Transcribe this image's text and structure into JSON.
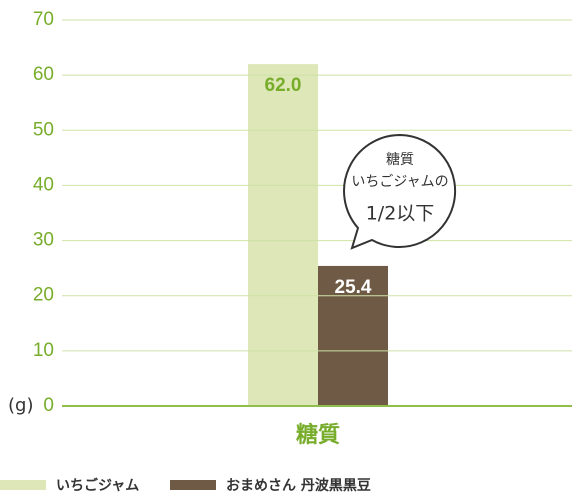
{
  "chart_data": {
    "type": "bar",
    "categories": [
      "糖質"
    ],
    "y_unit": "(g)",
    "series": [
      {
        "name": "いちごジャム",
        "color": "#dde7b8",
        "label_color": "#78ad2c",
        "values": [
          62.0
        ],
        "value_labels": [
          "62.0"
        ]
      },
      {
        "name": "おまめさん 丹波黒黒豆",
        "color": "#6e5a45",
        "label_color": "#ffffff",
        "values": [
          25.4
        ],
        "value_labels": [
          "25.4"
        ]
      }
    ],
    "ylim": [
      0,
      70
    ],
    "yticks": [
      0,
      10,
      20,
      30,
      40,
      50,
      60,
      70
    ],
    "grid": true,
    "annotation": {
      "lines": [
        "糖質",
        "いちごジャムの",
        "1/2以下"
      ]
    }
  }
}
